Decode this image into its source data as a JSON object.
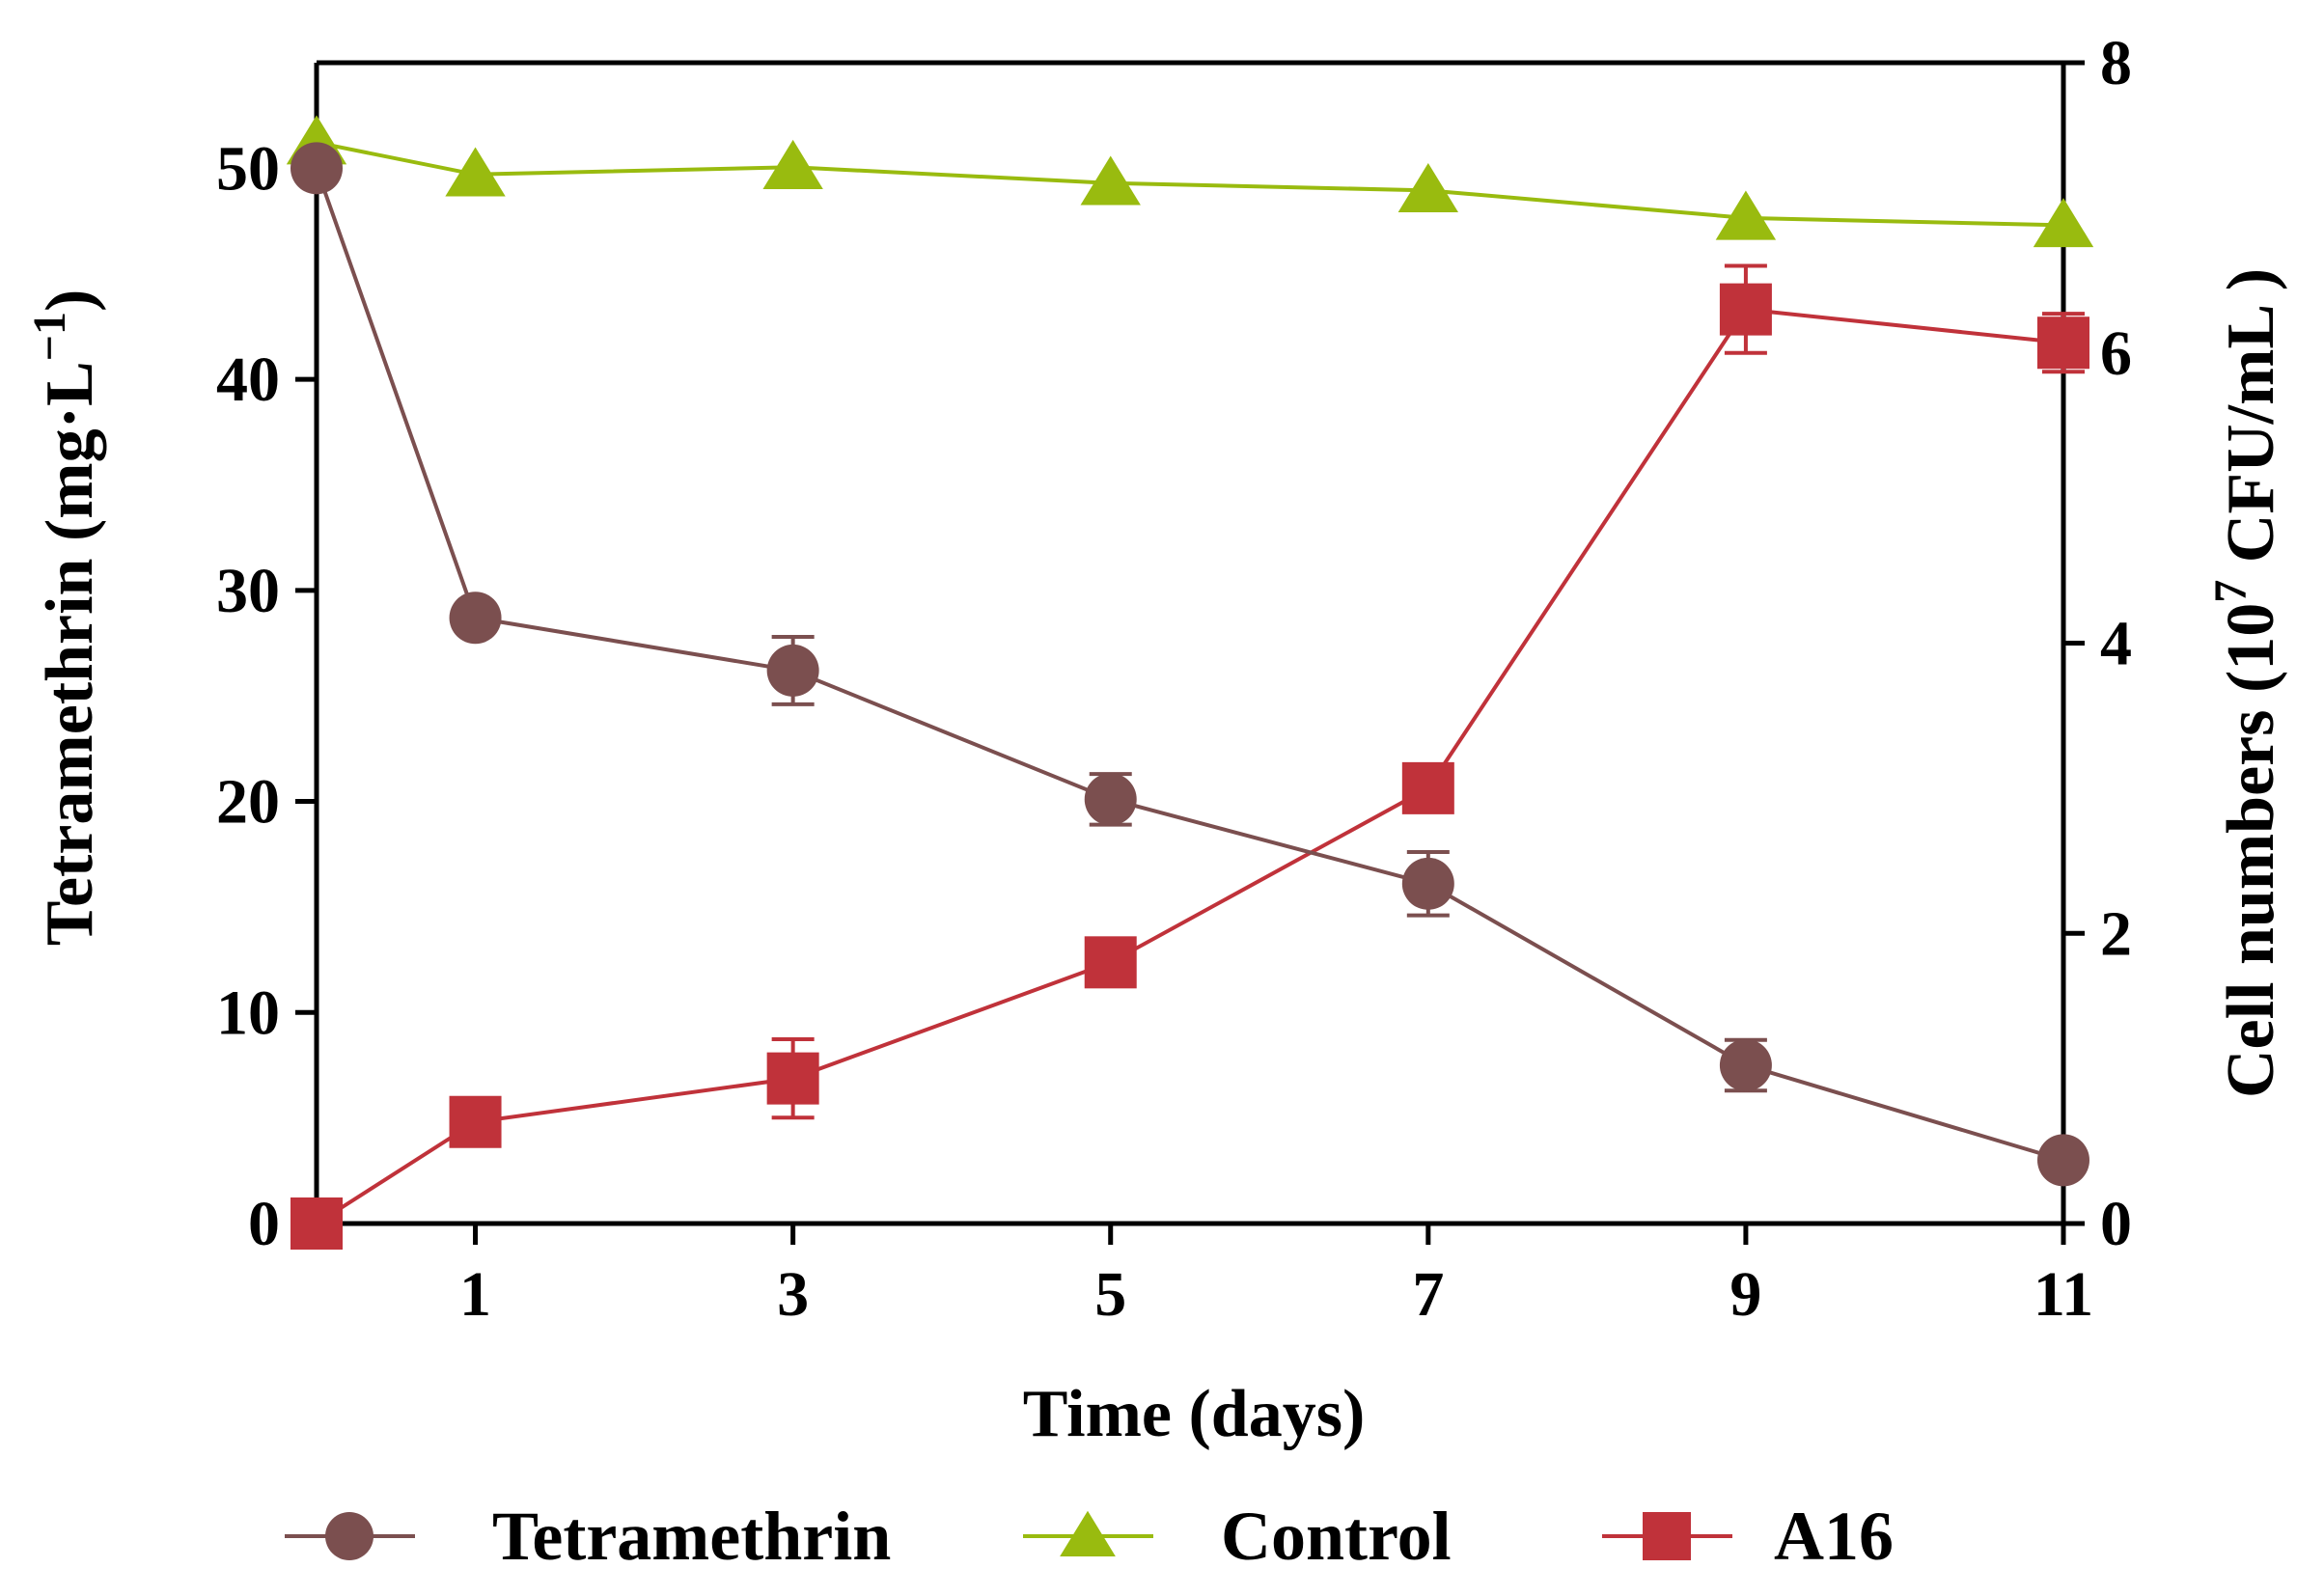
{
  "chart_data": {
    "type": "line",
    "xlabel": "Time (days)",
    "ylabel_left_main": "Tetramethrin (mg·L",
    "ylabel_left_sup": "−1",
    "ylabel_left_end": ")",
    "ylabel_right_main": "Cell numbers (10",
    "ylabel_right_sup": "7",
    "ylabel_right_end": " CFU/mL )",
    "x_ticks": [
      "1",
      "3",
      "5",
      "7",
      "9",
      "11"
    ],
    "x_tick_values": [
      1,
      3,
      5,
      7,
      9,
      11
    ],
    "xlim": [
      0,
      11
    ],
    "y_left_ticks": [
      "0",
      "10",
      "20",
      "30",
      "40",
      "50"
    ],
    "y_left_tick_values": [
      0,
      10,
      20,
      30,
      40,
      50
    ],
    "y_left_lim": [
      0,
      55
    ],
    "y_right_ticks": [
      "0",
      "2",
      "4",
      "6",
      "8"
    ],
    "y_right_tick_values": [
      0,
      2,
      4,
      6,
      8
    ],
    "y_right_lim": [
      0,
      8
    ],
    "legend_position": "bottom",
    "series": [
      {
        "name": "Tetramethrin",
        "axis": "left",
        "marker": "circle",
        "color": "#7b4f4f",
        "x": [
          0,
          1,
          3,
          5,
          7,
          9,
          11
        ],
        "y": [
          50,
          28.7,
          26.2,
          20.1,
          16.1,
          7.5,
          3.0
        ],
        "err": [
          0,
          0,
          1.6,
          1.2,
          1.5,
          1.2,
          0
        ]
      },
      {
        "name": "Control",
        "axis": "right",
        "marker": "triangle",
        "color": "#99bb0f",
        "x": [
          0,
          1,
          3,
          5,
          7,
          9,
          11
        ],
        "y": [
          7.45,
          7.23,
          7.28,
          7.17,
          7.12,
          6.93,
          6.88
        ],
        "err": [
          0,
          0,
          0,
          0,
          0,
          0,
          0
        ]
      },
      {
        "name": "A16",
        "axis": "right",
        "marker": "square",
        "color": "#c0323a",
        "x": [
          0,
          1,
          3,
          5,
          7,
          9,
          11
        ],
        "y": [
          0,
          0.7,
          1.0,
          1.8,
          3.0,
          6.3,
          6.07
        ],
        "err": [
          0,
          0,
          0.27,
          0,
          0,
          0.3,
          0.2
        ]
      }
    ]
  }
}
